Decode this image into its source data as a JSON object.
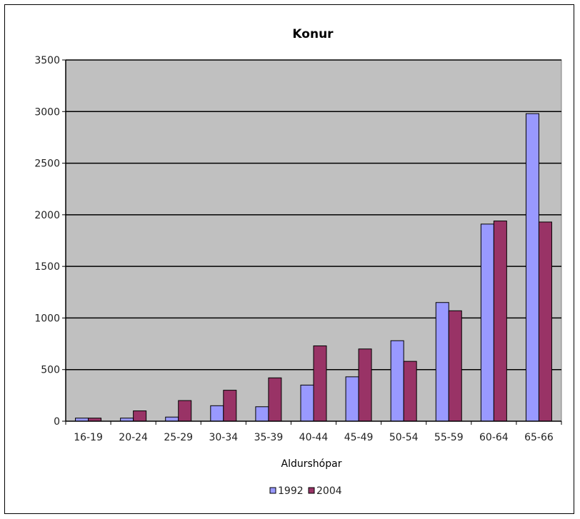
{
  "chart_data": {
    "type": "bar",
    "title": "Konur",
    "xlabel": "Aldurshópar",
    "ylabel": "",
    "ylim": [
      0,
      3500
    ],
    "yticks": [
      0,
      500,
      1000,
      1500,
      2000,
      2500,
      3000,
      3500
    ],
    "categories": [
      "16-19",
      "20-24",
      "25-29",
      "30-34",
      "35-39",
      "40-44",
      "45-49",
      "50-54",
      "55-59",
      "60-64",
      "65-66"
    ],
    "series": [
      {
        "name": "1992",
        "color": "#9999ff",
        "values": [
          30,
          30,
          40,
          150,
          140,
          350,
          430,
          780,
          1150,
          1910,
          2980
        ]
      },
      {
        "name": "2004",
        "color": "#993366",
        "values": [
          30,
          100,
          200,
          300,
          420,
          730,
          700,
          580,
          1070,
          1940,
          1930
        ]
      }
    ],
    "grid": true,
    "plot_background": "#c0c0c0",
    "legend": "bottom"
  }
}
